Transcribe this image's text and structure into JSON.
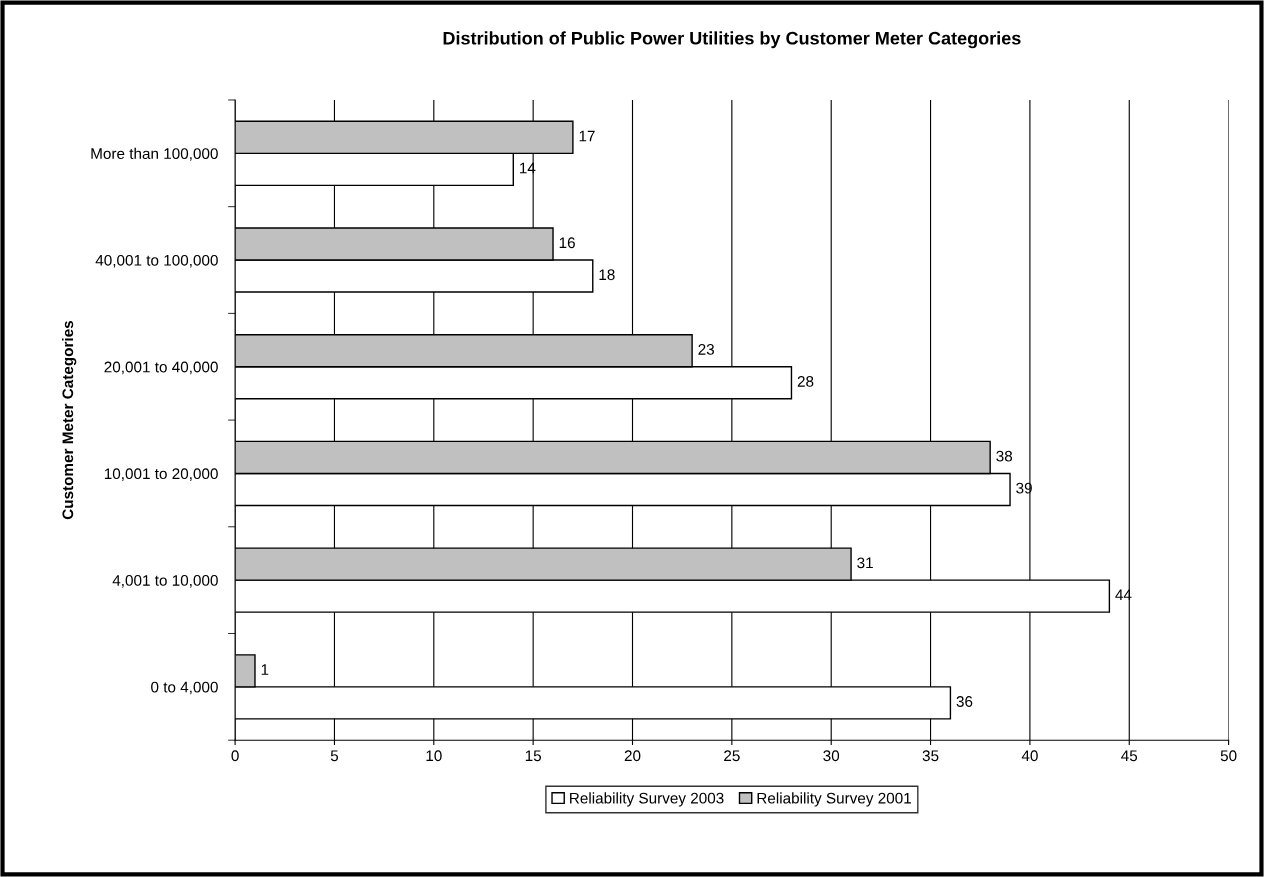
{
  "chart_data": {
    "type": "bar",
    "orientation": "horizontal",
    "title": "Distribution of Public Power Utilities by Customer Meter Categories",
    "ylabel": "Customer Meter Categories",
    "categories": [
      "More than 100,000",
      "40,001 to 100,000",
      "20,001 to 40,000",
      "10,001 to 20,000",
      "4,001 to 10,000",
      "0 to 4,000"
    ],
    "series": [
      {
        "name": "Reliability Survey 2003",
        "color": "#ffffff",
        "values": [
          14,
          18,
          28,
          39,
          44,
          36
        ]
      },
      {
        "name": "Reliability Survey 2001",
        "color": "#c0c0c0",
        "values": [
          17,
          16,
          23,
          38,
          31,
          1
        ]
      }
    ],
    "xlim": [
      0,
      50
    ],
    "xticks": [
      0,
      5,
      10,
      15,
      20,
      25,
      30,
      35,
      40,
      45,
      50
    ],
    "grid": "x",
    "legend": "bottom",
    "data_labels": true
  }
}
